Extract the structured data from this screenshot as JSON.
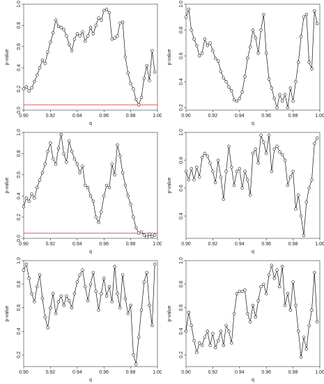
{
  "chart_data": [
    {
      "type": "line",
      "xlabel": "q",
      "ylabel": "p-value",
      "xlim": [
        0.9,
        1.0
      ],
      "ylim": [
        0.0,
        1.0
      ],
      "xticks": [
        "0.90",
        "0.92",
        "0.94",
        "0.96",
        "0.98",
        "1.00"
      ],
      "yticks": [
        "0.0",
        "0.2",
        "0.4",
        "0.6",
        "0.8",
        "1.0"
      ],
      "reference_line": {
        "y": 0.05,
        "color": "#e05050"
      },
      "x": [
        0.9,
        0.902,
        0.904,
        0.906,
        0.908,
        0.91,
        0.912,
        0.914,
        0.916,
        0.918,
        0.92,
        0.922,
        0.924,
        0.926,
        0.928,
        0.93,
        0.932,
        0.934,
        0.936,
        0.938,
        0.94,
        0.942,
        0.944,
        0.946,
        0.948,
        0.95,
        0.952,
        0.954,
        0.956,
        0.958,
        0.96,
        0.962,
        0.964,
        0.966,
        0.968,
        0.97,
        0.972,
        0.974,
        0.976,
        0.978,
        0.98,
        0.982,
        0.984,
        0.986,
        0.988,
        0.99,
        0.992,
        0.994,
        0.996,
        0.998
      ],
      "values": [
        0.2,
        0.22,
        0.18,
        0.21,
        0.27,
        0.33,
        0.4,
        0.47,
        0.44,
        0.55,
        0.64,
        0.73,
        0.85,
        0.79,
        0.78,
        0.76,
        0.7,
        0.62,
        0.56,
        0.67,
        0.72,
        0.7,
        0.74,
        0.65,
        0.7,
        0.78,
        0.72,
        0.8,
        0.87,
        0.85,
        0.94,
        0.95,
        0.92,
        0.67,
        0.68,
        0.7,
        0.82,
        0.83,
        0.5,
        0.35,
        0.25,
        0.2,
        0.1,
        0.05,
        0.12,
        0.3,
        0.42,
        0.28,
        0.56,
        0.36
      ]
    },
    {
      "type": "line",
      "xlabel": "q",
      "ylabel": "p-value",
      "xlim": [
        0.9,
        1.0
      ],
      "ylim": [
        0.18,
        1.0
      ],
      "xticks": [
        "0.90",
        "0.92",
        "0.94",
        "0.96",
        "0.98",
        "1.00"
      ],
      "yticks": [
        "0.2",
        "0.4",
        "0.6",
        "0.8",
        "1.0"
      ],
      "x": [
        0.9,
        0.902,
        0.904,
        0.906,
        0.908,
        0.91,
        0.912,
        0.914,
        0.916,
        0.918,
        0.92,
        0.922,
        0.924,
        0.926,
        0.928,
        0.93,
        0.932,
        0.934,
        0.936,
        0.938,
        0.94,
        0.942,
        0.944,
        0.946,
        0.948,
        0.95,
        0.952,
        0.954,
        0.956,
        0.958,
        0.96,
        0.962,
        0.964,
        0.966,
        0.968,
        0.97,
        0.972,
        0.974,
        0.976,
        0.978,
        0.98,
        0.982,
        0.984,
        0.986,
        0.988,
        0.99,
        0.992,
        0.994,
        0.996,
        0.998
      ],
      "values": [
        0.9,
        0.96,
        0.8,
        0.73,
        0.68,
        0.6,
        0.62,
        0.73,
        0.68,
        0.7,
        0.64,
        0.58,
        0.56,
        0.48,
        0.43,
        0.4,
        0.36,
        0.33,
        0.26,
        0.25,
        0.27,
        0.32,
        0.44,
        0.58,
        0.67,
        0.8,
        0.74,
        0.62,
        0.8,
        0.92,
        0.62,
        0.42,
        0.35,
        0.27,
        0.2,
        0.3,
        0.25,
        0.3,
        0.2,
        0.35,
        0.25,
        0.4,
        0.55,
        0.75,
        0.9,
        0.92,
        0.55,
        0.5,
        0.95,
        0.85
      ]
    },
    {
      "type": "line",
      "xlabel": "q",
      "ylabel": "p-value",
      "xlim": [
        0.9,
        1.0
      ],
      "ylim": [
        0.0,
        1.0
      ],
      "xticks": [
        "0.90",
        "0.92",
        "0.94",
        "0.96",
        "0.98",
        "1.00"
      ],
      "yticks": [
        "0.0",
        "0.2",
        "0.4",
        "0.6",
        "0.8",
        "1.0"
      ],
      "reference_line": {
        "y": 0.05,
        "color": "#e05050"
      },
      "x": [
        0.9,
        0.902,
        0.904,
        0.906,
        0.908,
        0.91,
        0.912,
        0.914,
        0.916,
        0.918,
        0.92,
        0.922,
        0.924,
        0.926,
        0.928,
        0.93,
        0.932,
        0.934,
        0.936,
        0.938,
        0.94,
        0.942,
        0.944,
        0.946,
        0.948,
        0.95,
        0.952,
        0.954,
        0.956,
        0.958,
        0.96,
        0.962,
        0.964,
        0.966,
        0.968,
        0.97,
        0.972,
        0.974,
        0.976,
        0.978,
        0.98,
        0.982,
        0.984,
        0.986,
        0.988,
        0.99,
        0.992,
        0.994,
        0.996,
        0.998
      ],
      "values": [
        0.3,
        0.38,
        0.35,
        0.42,
        0.38,
        0.48,
        0.55,
        0.62,
        0.7,
        0.82,
        0.9,
        0.75,
        0.7,
        0.85,
        0.98,
        0.8,
        0.72,
        0.92,
        0.82,
        0.75,
        0.7,
        0.62,
        0.68,
        0.5,
        0.48,
        0.4,
        0.35,
        0.2,
        0.15,
        0.25,
        0.4,
        0.5,
        0.48,
        0.7,
        0.6,
        0.88,
        0.78,
        0.62,
        0.5,
        0.4,
        0.32,
        0.2,
        0.1,
        0.05,
        0.06,
        0.03,
        0.01,
        0.04,
        0.02,
        0.03
      ]
    },
    {
      "type": "line",
      "xlabel": "q",
      "ylabel": "p-value",
      "xlim": [
        0.9,
        1.0
      ],
      "ylim": [
        0.24,
        1.0
      ],
      "xticks": [
        "0.90",
        "0.92",
        "0.94",
        "0.96",
        "0.98",
        "1.00"
      ],
      "yticks": [
        "0.4",
        "0.6",
        "0.8",
        "1.0"
      ],
      "x": [
        0.9,
        0.902,
        0.904,
        0.906,
        0.908,
        0.91,
        0.912,
        0.914,
        0.916,
        0.918,
        0.92,
        0.922,
        0.924,
        0.926,
        0.928,
        0.93,
        0.932,
        0.934,
        0.936,
        0.938,
        0.94,
        0.942,
        0.944,
        0.946,
        0.948,
        0.95,
        0.952,
        0.954,
        0.956,
        0.958,
        0.96,
        0.962,
        0.964,
        0.966,
        0.968,
        0.97,
        0.972,
        0.974,
        0.976,
        0.978,
        0.98,
        0.982,
        0.984,
        0.986,
        0.988,
        0.99,
        0.992,
        0.994,
        0.996,
        0.998
      ],
      "values": [
        0.72,
        0.66,
        0.74,
        0.66,
        0.75,
        0.68,
        0.82,
        0.85,
        0.83,
        0.78,
        0.72,
        0.64,
        0.8,
        0.68,
        0.52,
        0.72,
        0.9,
        0.75,
        0.62,
        0.72,
        0.74,
        0.6,
        0.72,
        0.66,
        0.55,
        0.85,
        0.88,
        0.78,
        0.98,
        0.93,
        0.85,
        0.98,
        0.72,
        0.88,
        0.9,
        0.86,
        0.84,
        0.8,
        0.62,
        0.68,
        0.72,
        0.45,
        0.55,
        0.4,
        0.26,
        0.5,
        0.6,
        0.66,
        0.92,
        0.96
      ]
    },
    {
      "type": "line",
      "xlabel": "q",
      "ylabel": "p-value",
      "xlim": [
        0.9,
        1.0
      ],
      "ylim": [
        0.1,
        1.0
      ],
      "xticks": [
        "0.90",
        "0.92",
        "0.94",
        "0.96",
        "0.98",
        "1.00"
      ],
      "yticks": [
        "0.2",
        "0.4",
        "0.6",
        "0.8",
        "1.0"
      ],
      "x": [
        0.9,
        0.902,
        0.904,
        0.906,
        0.908,
        0.91,
        0.912,
        0.914,
        0.916,
        0.918,
        0.92,
        0.922,
        0.924,
        0.926,
        0.928,
        0.93,
        0.932,
        0.934,
        0.936,
        0.938,
        0.94,
        0.942,
        0.944,
        0.946,
        0.948,
        0.95,
        0.952,
        0.954,
        0.956,
        0.958,
        0.96,
        0.962,
        0.964,
        0.966,
        0.968,
        0.97,
        0.972,
        0.974,
        0.976,
        0.978,
        0.98,
        0.982,
        0.984,
        0.986,
        0.988,
        0.99,
        0.992,
        0.994,
        0.996,
        0.998
      ],
      "values": [
        0.92,
        0.97,
        0.85,
        0.72,
        0.65,
        0.78,
        0.88,
        0.68,
        0.52,
        0.43,
        0.6,
        0.72,
        0.55,
        0.65,
        0.7,
        0.62,
        0.7,
        0.66,
        0.6,
        0.72,
        0.82,
        0.88,
        0.92,
        0.78,
        0.66,
        0.8,
        0.9,
        0.74,
        0.58,
        0.72,
        0.85,
        0.7,
        0.78,
        0.65,
        0.95,
        0.72,
        0.6,
        0.88,
        0.68,
        0.55,
        0.62,
        0.2,
        0.12,
        0.35,
        0.58,
        0.82,
        0.9,
        0.62,
        0.45,
        0.97
      ]
    },
    {
      "type": "line",
      "xlabel": "q",
      "ylabel": "p-value",
      "xlim": [
        0.9,
        1.0
      ],
      "ylim": [
        0.1,
        1.0
      ],
      "xticks": [
        "0.90",
        "0.92",
        "0.94",
        "0.96",
        "0.98",
        "1.00"
      ],
      "yticks": [
        "0.2",
        "0.4",
        "0.6",
        "0.8",
        "1.0"
      ],
      "x": [
        0.9,
        0.902,
        0.904,
        0.906,
        0.908,
        0.91,
        0.912,
        0.914,
        0.916,
        0.918,
        0.92,
        0.922,
        0.924,
        0.926,
        0.928,
        0.93,
        0.932,
        0.934,
        0.936,
        0.938,
        0.94,
        0.942,
        0.944,
        0.946,
        0.948,
        0.95,
        0.952,
        0.954,
        0.956,
        0.958,
        0.96,
        0.962,
        0.964,
        0.966,
        0.968,
        0.97,
        0.972,
        0.974,
        0.976,
        0.978,
        0.98,
        0.982,
        0.984,
        0.986,
        0.988,
        0.99,
        0.992,
        0.994,
        0.996,
        0.998
      ],
      "values": [
        0.4,
        0.56,
        0.45,
        0.32,
        0.22,
        0.3,
        0.28,
        0.35,
        0.4,
        0.28,
        0.38,
        0.26,
        0.32,
        0.4,
        0.28,
        0.45,
        0.4,
        0.3,
        0.55,
        0.72,
        0.74,
        0.74,
        0.75,
        0.55,
        0.48,
        0.62,
        0.52,
        0.66,
        0.78,
        0.8,
        0.72,
        0.88,
        0.96,
        0.85,
        0.92,
        0.78,
        0.95,
        0.62,
        0.72,
        0.58,
        0.82,
        0.62,
        0.4,
        0.18,
        0.35,
        0.25,
        0.45,
        0.58,
        0.9,
        0.48
      ]
    }
  ]
}
